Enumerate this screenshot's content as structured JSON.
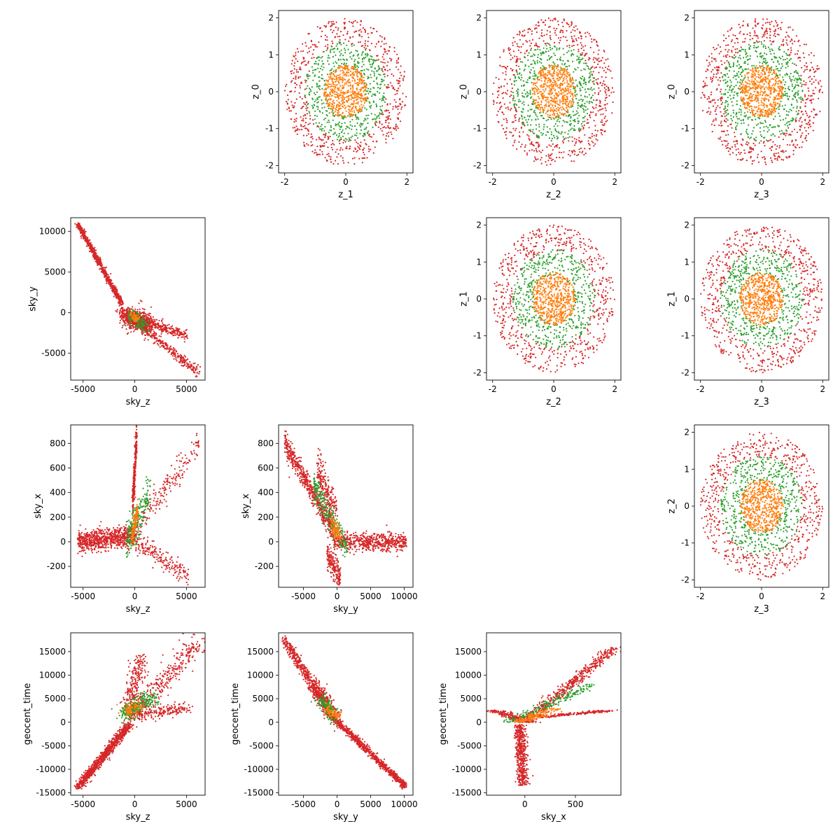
{
  "chart_data": {
    "type": "scatter",
    "layout": "corner-pair-grid",
    "series_colors": [
      "#d62728",
      "#2ca02c",
      "#ff7f0e"
    ],
    "panels": [
      {
        "id": "z1-z0",
        "type": "scatter",
        "row": 0,
        "col": 1,
        "xlabel": "z_1",
        "ylabel": "z_0",
        "xlim": [
          -2.2,
          2.2
        ],
        "ylim": [
          -2.2,
          2.2
        ],
        "xticks": [
          -2,
          0,
          2
        ],
        "yticks": [
          -2,
          -1,
          0,
          1,
          2
        ],
        "generator": "disk",
        "params": {
          "rings": [
            {
              "color": "#d62728",
              "r0": 1.3,
              "r1": 2.0,
              "n": 600
            },
            {
              "color": "#2ca02c",
              "r0": 0.65,
              "r1": 1.35,
              "n": 500
            },
            {
              "color": "#ff7f0e",
              "r0": 0.0,
              "r1": 0.72,
              "n": 550
            }
          ]
        }
      },
      {
        "id": "z2-z0",
        "type": "scatter",
        "row": 0,
        "col": 2,
        "xlabel": "z_2",
        "ylabel": "z_0",
        "xlim": [
          -2.2,
          2.2
        ],
        "ylim": [
          -2.2,
          2.2
        ],
        "xticks": [
          -2,
          0,
          2
        ],
        "yticks": [
          -2,
          -1,
          0,
          1,
          2
        ],
        "generator": "disk",
        "params": {
          "rings": [
            {
              "color": "#d62728",
              "r0": 1.3,
              "r1": 2.0,
              "n": 600
            },
            {
              "color": "#2ca02c",
              "r0": 0.65,
              "r1": 1.35,
              "n": 500
            },
            {
              "color": "#ff7f0e",
              "r0": 0.0,
              "r1": 0.72,
              "n": 550
            }
          ]
        }
      },
      {
        "id": "z3-z0",
        "type": "scatter",
        "row": 0,
        "col": 3,
        "xlabel": "z_3",
        "ylabel": "z_0",
        "xlim": [
          -2.2,
          2.2
        ],
        "ylim": [
          -2.2,
          2.2
        ],
        "xticks": [
          -2,
          0,
          2
        ],
        "yticks": [
          -2,
          -1,
          0,
          1,
          2
        ],
        "generator": "disk",
        "params": {
          "rings": [
            {
              "color": "#d62728",
              "r0": 1.3,
              "r1": 2.0,
              "n": 600
            },
            {
              "color": "#2ca02c",
              "r0": 0.65,
              "r1": 1.35,
              "n": 500
            },
            {
              "color": "#ff7f0e",
              "r0": 0.0,
              "r1": 0.72,
              "n": 550
            }
          ]
        }
      },
      {
        "id": "skyz-skyy",
        "type": "scatter",
        "row": 1,
        "col": 0,
        "xlabel": "sky_z",
        "ylabel": "sky_y",
        "xlim": [
          -6200,
          6800
        ],
        "ylim": [
          -8300,
          11700
        ],
        "xticks": [
          -5000,
          0,
          5000
        ],
        "yticks": [
          -5000,
          0,
          5000,
          10000
        ],
        "generator": "branches",
        "params": {
          "branches": [
            {
              "color": "#d62728",
              "n": 700,
              "from": [
                -5500,
                10900
              ],
              "to": [
                -1200,
                1000
              ],
              "spread": 180
            },
            {
              "color": "#d62728",
              "n": 400,
              "from": [
                -1500,
                0
              ],
              "to": [
                5000,
                -2800
              ],
              "spread": 300
            },
            {
              "color": "#d62728",
              "n": 350,
              "from": [
                -500,
                -500
              ],
              "to": [
                6200,
                -7500
              ],
              "spread": 280
            },
            {
              "color": "#d62728",
              "n": 500,
              "from": [
                -1000,
                -400
              ],
              "to": [
                1500,
                -1500
              ],
              "spread": 700
            },
            {
              "color": "#2ca02c",
              "n": 120,
              "from": [
                -600,
                -300
              ],
              "to": [
                1200,
                -1800
              ],
              "spread": 450
            },
            {
              "color": "#ff7f0e",
              "n": 50,
              "from": [
                -300,
                -200
              ],
              "to": [
                300,
                -800
              ],
              "spread": 250
            }
          ]
        }
      },
      {
        "id": "z2-z1",
        "type": "scatter",
        "row": 1,
        "col": 2,
        "xlabel": "z_2",
        "ylabel": "z_1",
        "xlim": [
          -2.2,
          2.2
        ],
        "ylim": [
          -2.2,
          2.2
        ],
        "xticks": [
          -2,
          0,
          2
        ],
        "yticks": [
          -2,
          -1,
          0,
          1,
          2
        ],
        "generator": "disk",
        "params": {
          "rings": [
            {
              "color": "#d62728",
              "r0": 1.3,
              "r1": 2.0,
              "n": 600
            },
            {
              "color": "#2ca02c",
              "r0": 0.65,
              "r1": 1.35,
              "n": 500
            },
            {
              "color": "#ff7f0e",
              "r0": 0.0,
              "r1": 0.72,
              "n": 550
            }
          ]
        }
      },
      {
        "id": "z3-z1",
        "type": "scatter",
        "row": 1,
        "col": 3,
        "xlabel": "z_3",
        "ylabel": "z_1",
        "xlim": [
          -2.2,
          2.2
        ],
        "ylim": [
          -2.2,
          2.2
        ],
        "xticks": [
          -2,
          0,
          2
        ],
        "yticks": [
          -2,
          -1,
          0,
          1,
          2
        ],
        "generator": "disk",
        "params": {
          "rings": [
            {
              "color": "#d62728",
              "r0": 1.3,
              "r1": 2.0,
              "n": 600
            },
            {
              "color": "#2ca02c",
              "r0": 0.65,
              "r1": 1.35,
              "n": 500
            },
            {
              "color": "#ff7f0e",
              "r0": 0.0,
              "r1": 0.72,
              "n": 550
            }
          ]
        }
      },
      {
        "id": "skyz-skyx",
        "type": "scatter",
        "row": 2,
        "col": 0,
        "xlabel": "sky_z",
        "ylabel": "sky_x",
        "xlim": [
          -6200,
          6800
        ],
        "ylim": [
          -370,
          950
        ],
        "xticks": [
          -5000,
          0,
          5000
        ],
        "yticks": [
          -200,
          0,
          200,
          400,
          600,
          800
        ],
        "generator": "branches",
        "params": {
          "branches": [
            {
              "color": "#d62728",
              "n": 800,
              "from": [
                -5500,
                0
              ],
              "to": [
                0,
                50
              ],
              "spread": 40
            },
            {
              "color": "#d62728",
              "n": 300,
              "from": [
                -200,
                300
              ],
              "to": [
                200,
                880
              ],
              "spread": 60
            },
            {
              "color": "#d62728",
              "n": 200,
              "from": [
                0,
                100
              ],
              "to": [
                6200,
                800
              ],
              "spread": 60
            },
            {
              "color": "#d62728",
              "n": 200,
              "from": [
                0,
                0
              ],
              "to": [
                5200,
                -280
              ],
              "spread": 40
            },
            {
              "color": "#2ca02c",
              "n": 220,
              "from": [
                -800,
                0
              ],
              "to": [
                1500,
                400
              ],
              "spread": 80
            },
            {
              "color": "#ff7f0e",
              "n": 120,
              "from": [
                -300,
                50
              ],
              "to": [
                300,
                250
              ],
              "spread": 50
            }
          ]
        }
      },
      {
        "id": "skyy-skyx",
        "type": "scatter",
        "row": 2,
        "col": 1,
        "xlabel": "sky_y",
        "ylabel": "sky_x",
        "xlim": [
          -8700,
          11300
        ],
        "ylim": [
          -370,
          950
        ],
        "xticks": [
          -5000,
          0,
          5000,
          10000
        ],
        "yticks": [
          -200,
          0,
          200,
          400,
          600,
          800
        ],
        "generator": "branches",
        "params": {
          "branches": [
            {
              "color": "#d62728",
              "n": 600,
              "from": [
                -7800,
                810
              ],
              "to": [
                -500,
                80
              ],
              "spread": 45
            },
            {
              "color": "#d62728",
              "n": 600,
              "from": [
                -500,
                0
              ],
              "to": [
                10300,
                0
              ],
              "spread": 35
            },
            {
              "color": "#d62728",
              "n": 250,
              "from": [
                -3000,
                600
              ],
              "to": [
                0,
                200
              ],
              "spread": 90
            },
            {
              "color": "#d62728",
              "n": 200,
              "from": [
                -1500,
                -100
              ],
              "to": [
                500,
                -300
              ],
              "spread": 50
            },
            {
              "color": "#2ca02c",
              "n": 250,
              "from": [
                -3500,
                450
              ],
              "to": [
                1500,
                -50
              ],
              "spread": 60
            },
            {
              "color": "#ff7f0e",
              "n": 100,
              "from": [
                -1000,
                150
              ],
              "to": [
                500,
                50
              ],
              "spread": 40
            }
          ]
        }
      },
      {
        "id": "z3-z2",
        "type": "scatter",
        "row": 2,
        "col": 3,
        "xlabel": "z_3",
        "ylabel": "z_2",
        "xlim": [
          -2.2,
          2.2
        ],
        "ylim": [
          -2.2,
          2.2
        ],
        "xticks": [
          -2,
          0,
          2
        ],
        "yticks": [
          -2,
          -1,
          0,
          1,
          2
        ],
        "generator": "disk",
        "params": {
          "rings": [
            {
              "color": "#d62728",
              "r0": 1.3,
              "r1": 2.0,
              "n": 600
            },
            {
              "color": "#2ca02c",
              "r0": 0.65,
              "r1": 1.35,
              "n": 500
            },
            {
              "color": "#ff7f0e",
              "r0": 0.0,
              "r1": 0.72,
              "n": 550
            }
          ]
        }
      },
      {
        "id": "skyz-geocent",
        "type": "scatter",
        "row": 3,
        "col": 0,
        "xlabel": "sky_z",
        "ylabel": "geocent_time",
        "xlim": [
          -6200,
          6800
        ],
        "ylim": [
          -15500,
          19000
        ],
        "xticks": [
          -5000,
          0,
          5000
        ],
        "yticks": [
          -15000,
          -10000,
          -5000,
          0,
          5000,
          10000,
          15000
        ],
        "generator": "branches",
        "params": {
          "branches": [
            {
              "color": "#d62728",
              "n": 900,
              "from": [
                -5500,
                -13800
              ],
              "to": [
                -500,
                -500
              ],
              "spread": 350
            },
            {
              "color": "#d62728",
              "n": 350,
              "from": [
                -500,
                500
              ],
              "to": [
                6200,
                17300
              ],
              "spread": 900
            },
            {
              "color": "#d62728",
              "n": 250,
              "from": [
                -500,
                2000
              ],
              "to": [
                500,
                13500
              ],
              "spread": 700
            },
            {
              "color": "#d62728",
              "n": 200,
              "from": [
                0,
                1500
              ],
              "to": [
                5000,
                3200
              ],
              "spread": 600
            },
            {
              "color": "#2ca02c",
              "n": 250,
              "from": [
                -1000,
                1500
              ],
              "to": [
                1500,
                5500
              ],
              "spread": 800
            },
            {
              "color": "#ff7f0e",
              "n": 100,
              "from": [
                -800,
                2000
              ],
              "to": [
                500,
                4000
              ],
              "spread": 600
            }
          ]
        }
      },
      {
        "id": "skyy-geocent",
        "type": "scatter",
        "row": 3,
        "col": 1,
        "xlabel": "sky_y",
        "ylabel": "geocent_time",
        "xlim": [
          -8700,
          11300
        ],
        "ylim": [
          -15500,
          19000
        ],
        "xticks": [
          -5000,
          0,
          5000,
          10000
        ],
        "yticks": [
          -15000,
          -10000,
          -5000,
          0,
          5000,
          10000,
          15000
        ],
        "generator": "branches",
        "params": {
          "branches": [
            {
              "color": "#d62728",
              "n": 500,
              "from": [
                -7800,
                17300
              ],
              "to": [
                -1000,
                2000
              ],
              "spread": 500
            },
            {
              "color": "#d62728",
              "n": 800,
              "from": [
                -1000,
                1500
              ],
              "to": [
                10300,
                -13800
              ],
              "spread": 350
            },
            {
              "color": "#d62728",
              "n": 300,
              "from": [
                -3500,
                8000
              ],
              "to": [
                0,
                500
              ],
              "spread": 900
            },
            {
              "color": "#2ca02c",
              "n": 150,
              "from": [
                -2500,
                5000
              ],
              "to": [
                -200,
                1000
              ],
              "spread": 700
            },
            {
              "color": "#ff7f0e",
              "n": 80,
              "from": [
                -1500,
                3000
              ],
              "to": [
                0,
                1000
              ],
              "spread": 500
            }
          ]
        }
      },
      {
        "id": "skyx-geocent",
        "type": "scatter",
        "row": 3,
        "col": 2,
        "xlabel": "sky_x",
        "ylabel": "geocent_time",
        "xlim": [
          -380,
          950
        ],
        "ylim": [
          -15500,
          19000
        ],
        "xticks": [
          0,
          500
        ],
        "yticks": [
          -15000,
          -10000,
          -5000,
          0,
          5000,
          10000,
          15000
        ],
        "generator": "branches",
        "params": {
          "branches": [
            {
              "color": "#d62728",
              "n": 500,
              "from": [
                -50,
                -500
              ],
              "to": [
                -20,
                -13500
              ],
              "spread": 45
            },
            {
              "color": "#d62728",
              "n": 500,
              "from": [
                0,
                0
              ],
              "to": [
                900,
                16000
              ],
              "spread": 70
            },
            {
              "color": "#d62728",
              "n": 250,
              "from": [
                -300,
                2500
              ],
              "to": [
                50,
                0
              ],
              "spread": 80
            },
            {
              "color": "#d62728",
              "n": 200,
              "from": [
                100,
                1000
              ],
              "to": [
                850,
                2500
              ],
              "spread": 90
            },
            {
              "color": "#2ca02c",
              "n": 200,
              "from": [
                -150,
                0
              ],
              "to": [
                650,
                8000
              ],
              "spread": 100
            },
            {
              "color": "#ff7f0e",
              "n": 150,
              "from": [
                -50,
                0
              ],
              "to": [
                300,
                3000
              ],
              "spread": 80
            }
          ]
        }
      }
    ]
  }
}
